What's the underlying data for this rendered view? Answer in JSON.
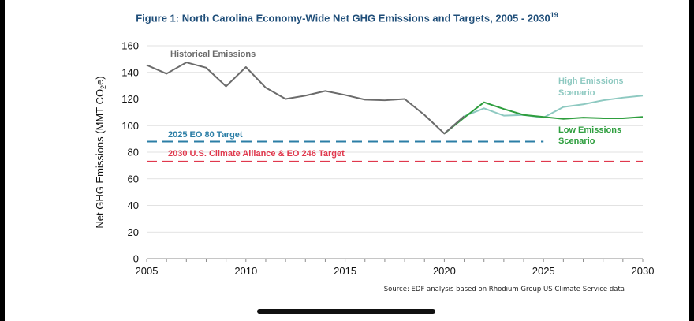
{
  "chart_data": {
    "type": "line",
    "title": "Figure 1: North Carolina Economy-Wide Net GHG Emissions and Targets, 2005 - 2030",
    "title_superscript": "19",
    "ylabel_parts": [
      "Net GHG Emissions (MMT CO",
      "2",
      "e)"
    ],
    "xlabel": "",
    "xlim": [
      2005,
      2030
    ],
    "ylim": [
      0,
      160
    ],
    "xticks": [
      2005,
      2010,
      2015,
      2020,
      2025,
      2030
    ],
    "yticks": [
      0,
      20,
      40,
      60,
      80,
      100,
      120,
      140,
      160
    ],
    "series": [
      {
        "name": "Historical Emissions",
        "color": "#6b6b6b",
        "x": [
          2005,
          2006,
          2007,
          2008,
          2009,
          2010,
          2011,
          2012,
          2013,
          2014,
          2015,
          2016,
          2017,
          2018,
          2019,
          2020,
          2021
        ],
        "values": [
          145.5,
          139,
          147.5,
          143.5,
          129.5,
          144,
          128.5,
          120,
          122.5,
          126,
          123,
          119.5,
          119,
          120,
          108,
          94,
          107
        ]
      },
      {
        "name": "High Emissions Scenario",
        "color": "#8ec9c1",
        "x": [
          2020,
          2021,
          2022,
          2023,
          2024,
          2025,
          2026,
          2027,
          2028,
          2029,
          2030
        ],
        "values": [
          94,
          107,
          113,
          107.5,
          108,
          106,
          114,
          116,
          119,
          121,
          122.5
        ]
      },
      {
        "name": "Low Emissions Scenario",
        "color": "#2e9e3e",
        "x": [
          2020,
          2021,
          2022,
          2023,
          2024,
          2025,
          2026,
          2027,
          2028,
          2029,
          2030
        ],
        "values": [
          94,
          106,
          117.5,
          112.5,
          108,
          106.5,
          105,
          106,
          105.5,
          105.5,
          106.5
        ]
      }
    ],
    "targets": [
      {
        "name": "2025 EO 80 Target",
        "value": 88,
        "x_start": 2005,
        "x_end": 2025,
        "color": "#2b7ea6"
      },
      {
        "name": "2030 U.S. Climate Alliance & EO 246 Target",
        "value": 73,
        "x_start": 2005,
        "x_end": 2030,
        "color": "#e0384d"
      }
    ],
    "annotations": {
      "historical": "Historical Emissions",
      "high": [
        "High Emissions",
        "Scenario"
      ],
      "low": [
        "Low Emissions",
        "Scenario"
      ]
    },
    "source": "Source: EDF analysis based on Rhodium Group US Climate Service data"
  }
}
